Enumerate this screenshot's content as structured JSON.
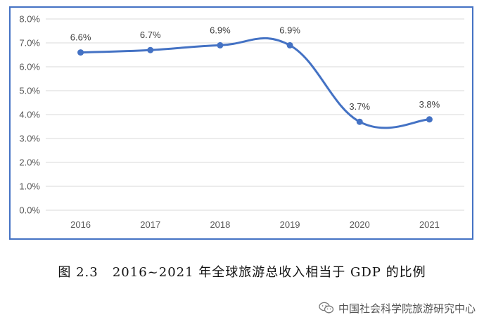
{
  "chart_data": {
    "type": "line",
    "categories": [
      "2016",
      "2017",
      "2018",
      "2019",
      "2020",
      "2021"
    ],
    "values": [
      6.6,
      6.7,
      6.9,
      6.9,
      3.7,
      3.8
    ],
    "data_labels": [
      "6.6%",
      "6.7%",
      "6.9%",
      "6.9%",
      "3.7%",
      "3.8%"
    ],
    "y_ticks": [
      "0.0%",
      "1.0%",
      "2.0%",
      "3.0%",
      "4.0%",
      "5.0%",
      "6.0%",
      "7.0%",
      "8.0%"
    ],
    "ylim": [
      0,
      8
    ],
    "grid": true,
    "line_color": "#4472C4",
    "smooth": true
  },
  "caption": "图 2.3   2016~2021 年全球旅游总收入相当于 GDP 的比例",
  "watermark": {
    "text": "中国社会科学院旅游研究中心",
    "icon": "wechat-icon"
  }
}
